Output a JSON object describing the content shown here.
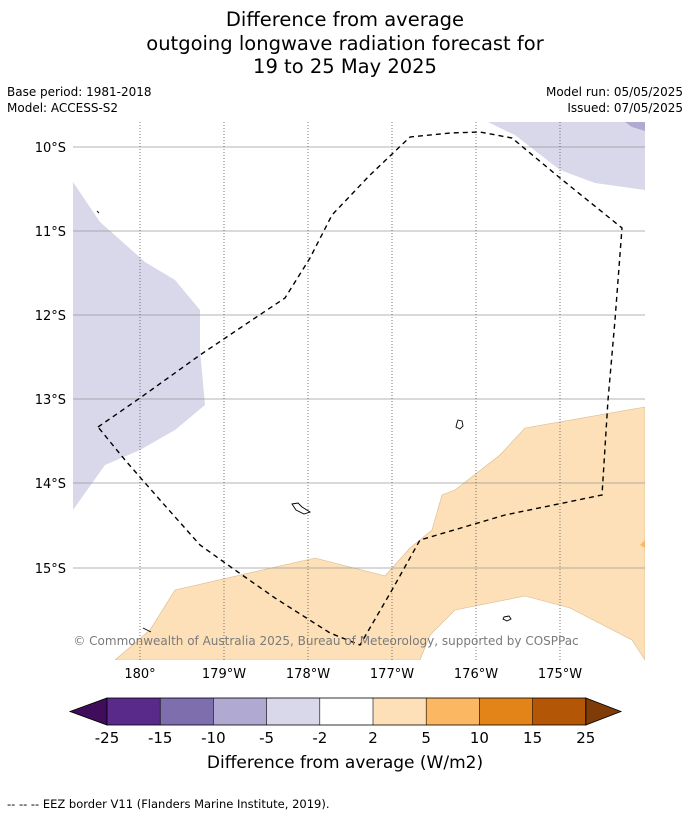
{
  "title": {
    "line1": "Difference from average",
    "line2": "outgoing longwave radiation forecast for",
    "line3": "19 to 25 May 2025"
  },
  "meta": {
    "base_period": "Base period: 1981-2018",
    "model": "Model: ACCESS-S2",
    "model_run": "Model run: 05/05/2025",
    "issued": "Issued: 07/05/2025"
  },
  "map": {
    "lat_labels": [
      "10°S",
      "11°S",
      "12°S",
      "13°S",
      "14°S",
      "15°S"
    ],
    "lon_labels": [
      "180°",
      "179°W",
      "178°W",
      "177°W",
      "176°W",
      "175°W"
    ],
    "copyright": "© Commonwealth of Australia 2025, Bureau of Meteorology, supported by COSPPac"
  },
  "colorbar": {
    "labels": [
      "-25",
      "-15",
      "-10",
      "-5",
      "-2",
      "2",
      "5",
      "10",
      "15",
      "25"
    ],
    "colors": [
      "#3f0d5c",
      "#5a2a8a",
      "#7f6eae",
      "#b0a9d2",
      "#d8d8ea",
      "#ffffff",
      "#fde0b8",
      "#fbb761",
      "#e28418",
      "#b35706",
      "#7f3b08"
    ],
    "title": "Difference from average (W/m2)"
  },
  "footer": {
    "legend": "--  --  -- EEZ border V11 (Flanders Marine Institute, 2019)."
  }
}
